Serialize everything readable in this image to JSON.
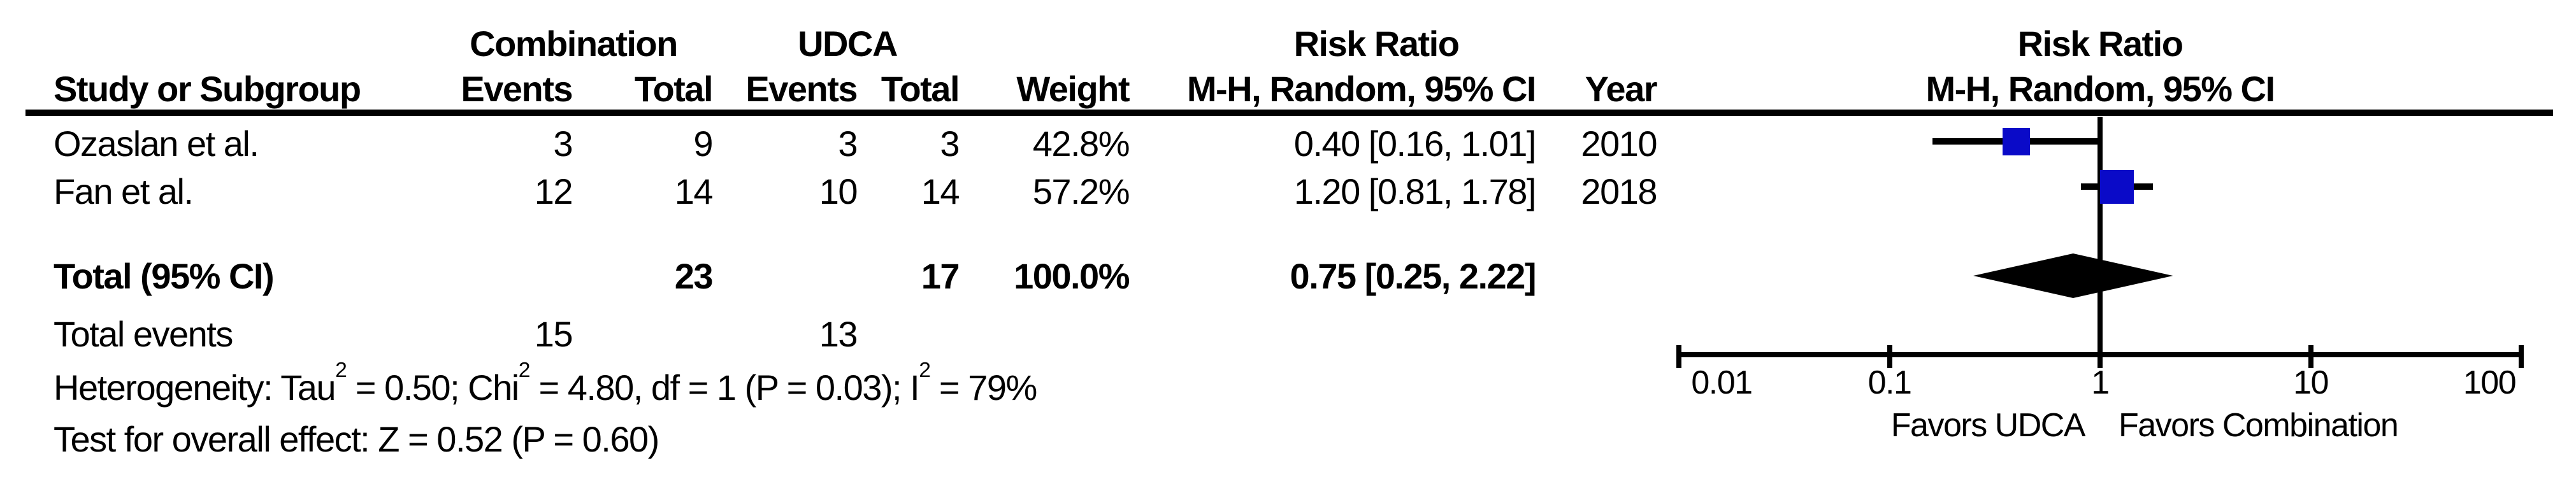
{
  "figure": {
    "group_header_combination": "Combination",
    "group_header_udca": "UDCA",
    "risk_ratio_header": "Risk Ratio",
    "method_header": "M-H, Random, 95% CI",
    "plot_risk_ratio_header": "Risk Ratio",
    "plot_method_header": "M-H, Random, 95% CI",
    "columns": {
      "study": "Study or Subgroup",
      "comb_events": "Events",
      "comb_total": "Total",
      "udca_events": "Events",
      "udca_total": "Total",
      "weight": "Weight",
      "ci": "M-H, Random, 95% CI",
      "year": "Year"
    },
    "rows": [
      {
        "study": "Ozaslan et al.",
        "comb_events": "3",
        "comb_total": "9",
        "udca_events": "3",
        "udca_total": "3",
        "weight": "42.8%",
        "ci": "0.40 [0.16, 1.01]",
        "year": "2010"
      },
      {
        "study": "Fan et al.",
        "comb_events": "12",
        "comb_total": "14",
        "udca_events": "10",
        "udca_total": "14",
        "weight": "57.2%",
        "ci": "1.20 [0.81, 1.78]",
        "year": "2018"
      }
    ],
    "total_row": {
      "label": "Total (95% CI)",
      "comb_total": "23",
      "udca_total": "17",
      "weight": "100.0%",
      "ci": "0.75 [0.25, 2.22]"
    },
    "total_events": {
      "label": "Total events",
      "comb": "15",
      "udca": "13"
    },
    "heterogeneity_parts": {
      "p1": "Heterogeneity: Tau",
      "s1": "2",
      "p2": " = 0.50; Chi",
      "s2": "2",
      "p3": " = 4.80, df = 1 (P = 0.03); I",
      "s3": "2",
      "p4": " = 79%"
    },
    "overall_effect": "Test for overall effect: Z = 0.52 (P = 0.60)",
    "axis_labels": [
      "0.01",
      "0.1",
      "1",
      "10",
      "100"
    ],
    "favors_left": "Favors UDCA",
    "favors_right": "Favors Combination",
    "colors": {
      "marker_blue": "#0A0AC8",
      "diamond_black": "#000000"
    }
  },
  "chart_data": {
    "type": "scatter",
    "subtype": "forest-plot-risk-ratio",
    "title": "Risk Ratio M-H, Random, 95% CI",
    "x_scale": "log",
    "xlim": [
      0.01,
      100
    ],
    "x_ticks": [
      0.01,
      0.1,
      1,
      10,
      100
    ],
    "no_effect_line": 1,
    "axis_footer_left": "Favors UDCA",
    "axis_footer_right": "Favors Combination",
    "studies": [
      {
        "name": "Ozaslan et al.",
        "rr": 0.4,
        "ci_low": 0.16,
        "ci_high": 1.01,
        "weight_pct": 42.8,
        "year": 2010,
        "combination_events": 3,
        "combination_total": 9,
        "udca_events": 3,
        "udca_total": 3
      },
      {
        "name": "Fan et al.",
        "rr": 1.2,
        "ci_low": 0.81,
        "ci_high": 1.78,
        "weight_pct": 57.2,
        "year": 2018,
        "combination_events": 12,
        "combination_total": 14,
        "udca_events": 10,
        "udca_total": 14
      }
    ],
    "total": {
      "label": "Total (95% CI)",
      "rr": 0.75,
      "ci_low": 0.25,
      "ci_high": 2.22,
      "weight_pct": 100.0,
      "combination_total": 23,
      "udca_total": 17,
      "combination_events": 15,
      "udca_events": 13
    },
    "heterogeneity": {
      "tau2": 0.5,
      "chi2": 4.8,
      "df": 1,
      "p": 0.03,
      "i2_pct": 79
    },
    "overall_effect": {
      "z": 0.52,
      "p": 0.6
    }
  }
}
